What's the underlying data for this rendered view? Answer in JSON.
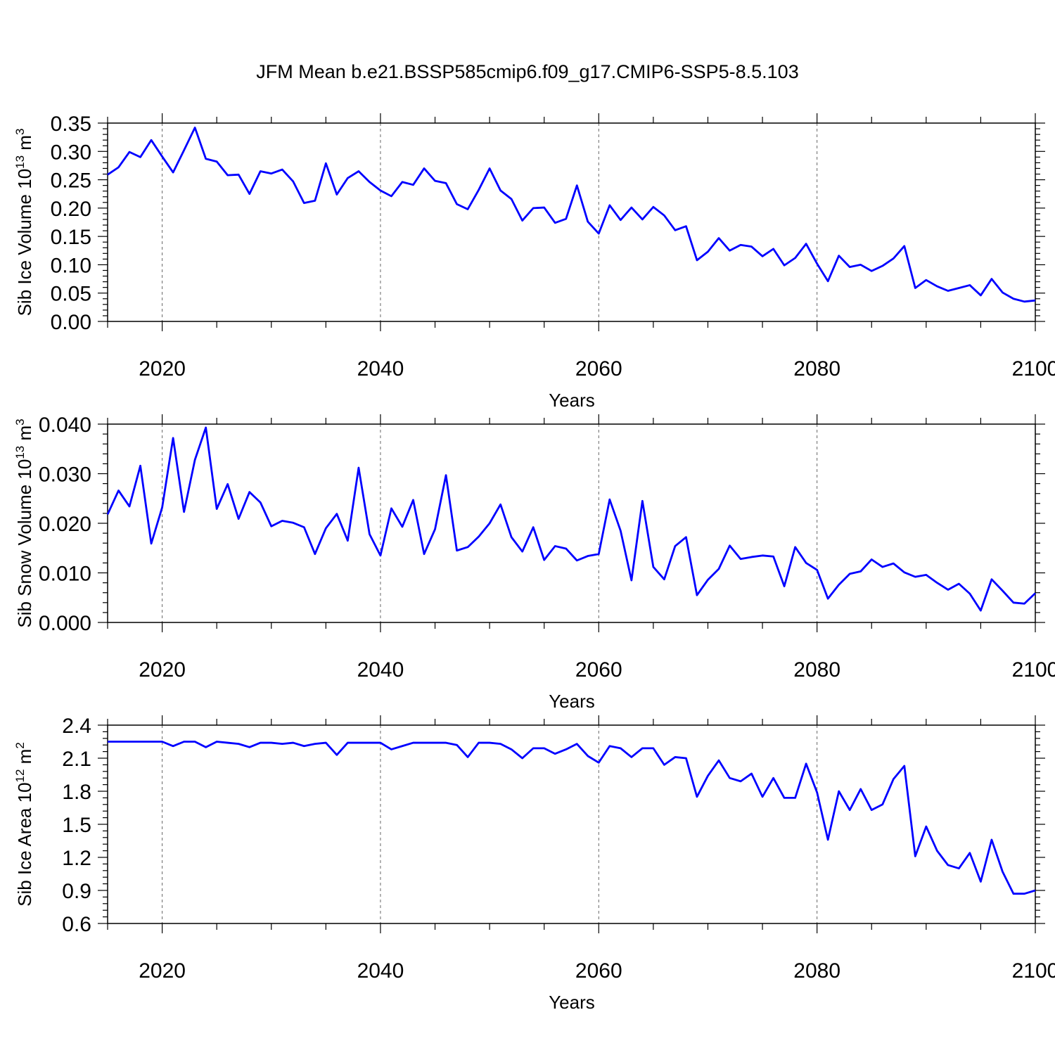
{
  "title": "JFM Mean b.e21.BSSP585cmip6.f09_g17.CMIP6-SSP5-8.5.103",
  "colors": {
    "line": "#0000ff",
    "axis": "#000000",
    "grid": "#666666"
  },
  "years_start": 2015,
  "chart_data": [
    {
      "type": "line",
      "ylabel": "Sib Ice Volume 10",
      "ylabel_exp": "13",
      "ylabel_unit": " m",
      "ylabel_unit_exp": "3",
      "xlabel": "Years",
      "xlim": [
        2015,
        2100
      ],
      "ylim": [
        0,
        0.35
      ],
      "yticks": [
        "0.00",
        "0.05",
        "0.10",
        "0.15",
        "0.20",
        "0.25",
        "0.30",
        "0.35"
      ],
      "xticks": [
        "2020",
        "2040",
        "2060",
        "2080",
        "2100"
      ],
      "values": [
        0.259,
        0.272,
        0.299,
        0.29,
        0.32,
        0.291,
        0.263,
        0.302,
        0.342,
        0.287,
        0.282,
        0.258,
        0.259,
        0.225,
        0.265,
        0.261,
        0.268,
        0.247,
        0.209,
        0.213,
        0.279,
        0.224,
        0.253,
        0.265,
        0.246,
        0.231,
        0.221,
        0.246,
        0.241,
        0.27,
        0.248,
        0.244,
        0.207,
        0.198,
        0.232,
        0.27,
        0.231,
        0.216,
        0.178,
        0.2,
        0.201,
        0.174,
        0.181,
        0.24,
        0.176,
        0.155,
        0.205,
        0.179,
        0.201,
        0.18,
        0.202,
        0.187,
        0.161,
        0.168,
        0.108,
        0.123,
        0.147,
        0.125,
        0.135,
        0.132,
        0.115,
        0.128,
        0.099,
        0.112,
        0.137,
        0.102,
        0.071,
        0.116,
        0.096,
        0.1,
        0.089,
        0.098,
        0.111,
        0.133,
        0.059,
        0.073,
        0.062,
        0.054,
        0.059,
        0.064,
        0.046,
        0.075,
        0.051,
        0.04,
        0.035,
        0.037
      ]
    },
    {
      "type": "line",
      "ylabel": "Sib Snow Volume 10",
      "ylabel_exp": "13",
      "ylabel_unit": " m",
      "ylabel_unit_exp": "3",
      "xlabel": "Years",
      "xlim": [
        2015,
        2100
      ],
      "ylim": [
        0,
        0.04
      ],
      "yticks": [
        "0.000",
        "0.010",
        "0.020",
        "0.030",
        "0.040"
      ],
      "xticks": [
        "2020",
        "2040",
        "2060",
        "2080",
        "2100"
      ],
      "values": [
        0.0218,
        0.0266,
        0.0234,
        0.0316,
        0.0159,
        0.0232,
        0.0372,
        0.0223,
        0.0328,
        0.0393,
        0.0229,
        0.0279,
        0.0209,
        0.0263,
        0.0242,
        0.0194,
        0.0205,
        0.0201,
        0.0192,
        0.0138,
        0.019,
        0.0219,
        0.0165,
        0.0312,
        0.0178,
        0.0135,
        0.023,
        0.0193,
        0.0247,
        0.0138,
        0.0188,
        0.0297,
        0.0145,
        0.0152,
        0.0173,
        0.02,
        0.0238,
        0.0172,
        0.0143,
        0.0192,
        0.0126,
        0.0154,
        0.0149,
        0.0125,
        0.0134,
        0.0138,
        0.0248,
        0.0185,
        0.0085,
        0.0245,
        0.0112,
        0.0087,
        0.0154,
        0.0172,
        0.0055,
        0.0086,
        0.0108,
        0.0155,
        0.0128,
        0.0132,
        0.0135,
        0.0133,
        0.0073,
        0.0152,
        0.012,
        0.0106,
        0.0048,
        0.0076,
        0.0098,
        0.0103,
        0.0127,
        0.0112,
        0.0119,
        0.0101,
        0.0092,
        0.0096,
        0.008,
        0.0066,
        0.0078,
        0.0058,
        0.0024,
        0.0087,
        0.0064,
        0.004,
        0.0038,
        0.0059
      ]
    },
    {
      "type": "line",
      "ylabel": "Sib Ice Area 10",
      "ylabel_exp": "12",
      "ylabel_unit": " m",
      "ylabel_unit_exp": "2",
      "xlabel": "Years",
      "xlim": [
        2015,
        2100
      ],
      "ylim": [
        0.6,
        2.4
      ],
      "yticks": [
        "0.6",
        "0.9",
        "1.2",
        "1.5",
        "1.8",
        "2.1",
        "2.4"
      ],
      "xticks": [
        "2020",
        "2040",
        "2060",
        "2080",
        "2100"
      ],
      "values": [
        2.25,
        2.25,
        2.25,
        2.25,
        2.25,
        2.25,
        2.21,
        2.25,
        2.25,
        2.2,
        2.25,
        2.24,
        2.23,
        2.2,
        2.24,
        2.24,
        2.23,
        2.24,
        2.21,
        2.23,
        2.24,
        2.13,
        2.24,
        2.24,
        2.24,
        2.24,
        2.18,
        2.21,
        2.24,
        2.24,
        2.24,
        2.24,
        2.22,
        2.11,
        2.24,
        2.24,
        2.23,
        2.18,
        2.1,
        2.19,
        2.19,
        2.14,
        2.18,
        2.23,
        2.12,
        2.06,
        2.21,
        2.19,
        2.11,
        2.19,
        2.19,
        2.04,
        2.11,
        2.1,
        1.75,
        1.94,
        2.08,
        1.92,
        1.89,
        1.96,
        1.75,
        1.92,
        1.74,
        1.74,
        2.05,
        1.79,
        1.36,
        1.8,
        1.63,
        1.82,
        1.63,
        1.68,
        1.91,
        2.03,
        1.21,
        1.48,
        1.26,
        1.13,
        1.1,
        1.24,
        0.98,
        1.36,
        1.07,
        0.87,
        0.87,
        0.9
      ]
    }
  ]
}
